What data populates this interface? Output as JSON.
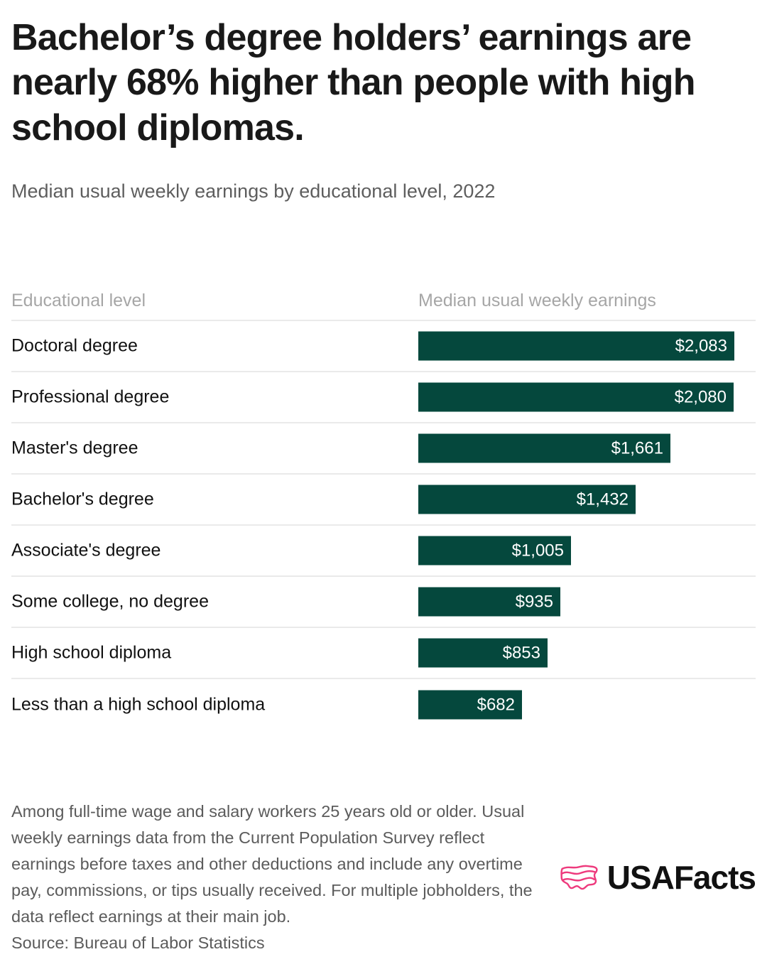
{
  "colors": {
    "bar": "#05483D",
    "logo_pink": "#EE3A7D",
    "divider": "#EAEAEA"
  },
  "icons": {
    "logo": "usa-map-flag-icon"
  },
  "header": {
    "title": "Bachelor’s degree holders’ earnings are nearly 68% higher than people with high school diplomas.",
    "subtitle": "Median usual weekly earnings by educational level, 2022"
  },
  "table": {
    "col1_header": "Educational level",
    "col2_header": "Median usual weekly earnings"
  },
  "chart_data": {
    "type": "bar",
    "orientation": "horizontal",
    "title": "Bachelor’s degree holders’ earnings are nearly 68% higher than people with high school diplomas.",
    "subtitle": "Median usual weekly earnings by educational level, 2022",
    "categories": [
      "Doctoral degree",
      "Professional degree",
      "Master's degree",
      "Bachelor's degree",
      "Associate's degree",
      "Some college, no degree",
      "High school diploma",
      "Less than a high school diploma"
    ],
    "values": [
      2083,
      2080,
      1661,
      1432,
      1005,
      935,
      853,
      682
    ],
    "value_labels": [
      "$2,083",
      "$2,080",
      "$1,661",
      "$1,432",
      "$1,005",
      "$935",
      "$853",
      "$682"
    ],
    "xlabel": "Median usual weekly earnings",
    "ylabel": "Educational level",
    "xlim": [
      0,
      2083
    ],
    "grid": false,
    "legend": false,
    "data_labels_position": "inside-end",
    "bar_color": "#05483D"
  },
  "footer": {
    "note": "Among full-time wage and salary workers 25 years old or older. Usual weekly earnings data from the Current Population Survey reflect earnings before taxes and other deductions and include any overtime pay, commissions, or tips usually received. For multiple jobholders, the data reflect earnings at their main job.",
    "source": "Source: Bureau of Labor Statistics",
    "logo_text": "USAFacts"
  }
}
